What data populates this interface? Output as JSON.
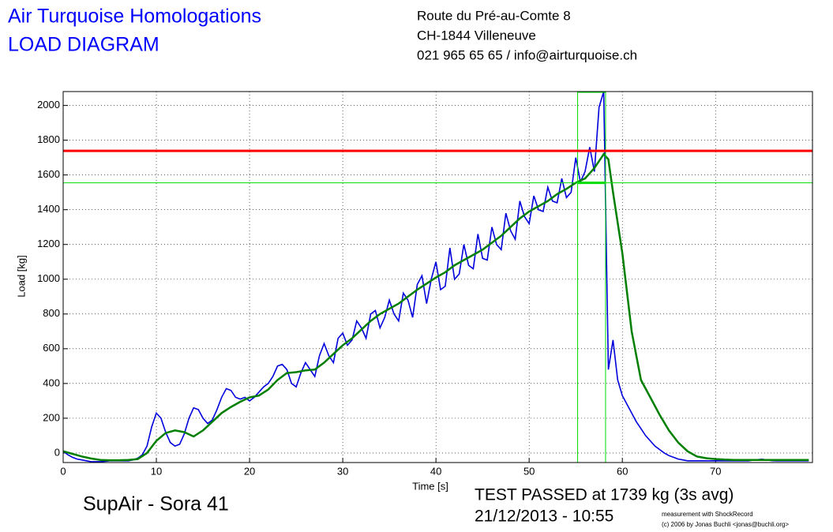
{
  "header": {
    "title": "Air Turquoise Homologations",
    "subtitle": "LOAD DIAGRAM",
    "address": [
      "Route du Pré-au-Comte 8",
      "CH-1844 Villeneuve",
      "021 965 65 65 / info@airturquoise.ch"
    ]
  },
  "footer": {
    "glider": "SupAir - Sora 41",
    "result": "TEST PASSED at 1739 kg (3s avg)",
    "date": "21/12/2013 - 10:55",
    "credit": [
      "measurement with ShockRecord",
      "(c) 2006 by Jonas Buchli <jonas@buchli.org>"
    ]
  },
  "chart_data": {
    "type": "line",
    "xlabel": "Time [s]",
    "ylabel": "Load [kg]",
    "xlim": [
      0,
      80.4
    ],
    "ylim": [
      -55,
      2080
    ],
    "xticks": [
      0,
      10,
      20,
      30,
      40,
      50,
      60,
      70
    ],
    "yticks": [
      0,
      200,
      400,
      600,
      800,
      1000,
      1200,
      1400,
      1600,
      1800,
      2000
    ],
    "grid": true,
    "reference_lines": [
      {
        "value": 1739,
        "color": "#ff0000"
      },
      {
        "value": 1555,
        "color": "#00dd00"
      }
    ],
    "marker_x": [
      55.2,
      58.2
    ],
    "marker_color": "#00dd00",
    "series": [
      {
        "color": "#0000dd",
        "x": [
          0,
          0.5,
          1,
          1.5,
          2,
          2.5,
          3,
          3.5,
          4,
          4.5,
          5,
          5.5,
          6,
          6.5,
          7,
          7.5,
          8,
          8.5,
          9,
          9.5,
          10,
          10.5,
          11,
          11.5,
          12,
          12.5,
          13,
          13.5,
          14,
          14.5,
          15,
          15.5,
          16,
          16.5,
          17,
          17.5,
          18,
          18.5,
          19,
          19.5,
          20,
          20.5,
          21,
          21.5,
          22,
          22.5,
          23,
          23.5,
          24,
          24.5,
          25,
          25.5,
          26,
          26.5,
          27,
          27.5,
          28,
          28.5,
          29,
          29.5,
          30,
          30.5,
          31,
          31.5,
          32,
          32.5,
          33,
          33.5,
          34,
          34.5,
          35,
          35.5,
          36,
          36.5,
          37,
          37.5,
          38,
          38.5,
          39,
          39.5,
          40,
          40.5,
          41,
          41.5,
          42,
          42.5,
          43,
          43.5,
          44,
          44.5,
          45,
          45.5,
          46,
          46.5,
          47,
          47.5,
          48,
          48.5,
          49,
          49.5,
          50,
          50.5,
          51,
          51.5,
          52,
          52.5,
          53,
          53.5,
          54,
          54.5,
          55,
          55.5,
          56,
          56.5,
          57,
          57.5,
          58,
          58.5,
          59,
          59.5,
          60,
          60.5,
          61,
          61.5,
          62,
          62.5,
          63,
          63.5,
          64,
          64.5,
          65,
          65.5,
          66,
          66.5,
          67,
          67.5,
          68,
          68.5,
          69,
          69.5,
          70,
          70.5,
          71,
          71.5,
          72,
          72.5,
          73,
          73.5,
          74,
          74.5,
          75,
          75.5,
          76,
          76.5,
          77,
          77.5,
          78,
          78.5,
          79,
          79.5,
          80
        ],
        "values": [
          10,
          -10,
          -25,
          -35,
          -40,
          -45,
          -50,
          -50,
          -50,
          -48,
          -45,
          -45,
          -45,
          -45,
          -45,
          -40,
          -30,
          -10,
          40,
          150,
          230,
          200,
          120,
          60,
          40,
          50,
          110,
          200,
          260,
          250,
          200,
          170,
          190,
          250,
          320,
          370,
          360,
          320,
          310,
          320,
          300,
          320,
          350,
          380,
          400,
          440,
          500,
          510,
          480,
          400,
          380,
          460,
          520,
          480,
          440,
          560,
          630,
          560,
          520,
          660,
          690,
          620,
          650,
          760,
          720,
          660,
          800,
          820,
          720,
          780,
          880,
          800,
          760,
          920,
          880,
          780,
          970,
          1020,
          860,
          1000,
          1100,
          940,
          960,
          1180,
          1000,
          1030,
          1200,
          1080,
          1060,
          1260,
          1120,
          1110,
          1300,
          1200,
          1170,
          1380,
          1280,
          1230,
          1450,
          1360,
          1320,
          1480,
          1400,
          1390,
          1530,
          1450,
          1440,
          1580,
          1470,
          1500,
          1700,
          1560,
          1620,
          1760,
          1620,
          1990,
          2080,
          480,
          650,
          420,
          330,
          280,
          230,
          180,
          140,
          100,
          70,
          40,
          20,
          0,
          -15,
          -25,
          -35,
          -40,
          -45,
          -45,
          -45,
          -45,
          -45,
          -45,
          -45,
          -45,
          -45,
          -45,
          -45,
          -45,
          -45,
          -45,
          -42,
          -38,
          -36,
          -40,
          -44,
          -45,
          -45,
          -45,
          -45,
          -45,
          -45,
          -45,
          -45
        ]
      },
      {
        "color": "#007f00",
        "x": [
          0,
          1,
          2,
          3,
          4,
          5,
          6,
          7,
          8,
          9,
          10,
          11,
          12,
          13,
          14,
          15,
          16,
          17,
          18,
          19,
          20,
          21,
          22,
          23,
          24,
          25,
          26,
          27,
          28,
          29,
          30,
          31,
          32,
          33,
          34,
          35,
          36,
          37,
          38,
          39,
          40,
          41,
          42,
          43,
          44,
          45,
          46,
          47,
          48,
          49,
          50,
          51,
          52,
          53,
          54,
          55,
          56,
          57,
          58,
          58.5,
          59,
          60,
          61,
          62,
          63,
          64,
          65,
          66,
          67,
          68,
          69,
          70,
          71,
          72,
          73,
          74,
          75,
          76,
          77,
          78,
          79,
          80
        ],
        "values": [
          10,
          -5,
          -20,
          -32,
          -40,
          -42,
          -42,
          -40,
          -35,
          0,
          70,
          115,
          130,
          120,
          95,
          130,
          180,
          230,
          265,
          295,
          320,
          330,
          365,
          420,
          460,
          465,
          475,
          480,
          520,
          570,
          620,
          660,
          710,
          760,
          800,
          830,
          860,
          900,
          940,
          975,
          1010,
          1040,
          1080,
          1110,
          1140,
          1170,
          1210,
          1250,
          1300,
          1350,
          1390,
          1420,
          1450,
          1490,
          1520,
          1555,
          1580,
          1640,
          1720,
          1690,
          1500,
          1150,
          700,
          420,
          320,
          220,
          130,
          60,
          10,
          -20,
          -30,
          -35,
          -38,
          -40,
          -40,
          -40,
          -40,
          -40,
          -40,
          -40,
          -40,
          -40
        ]
      }
    ]
  }
}
